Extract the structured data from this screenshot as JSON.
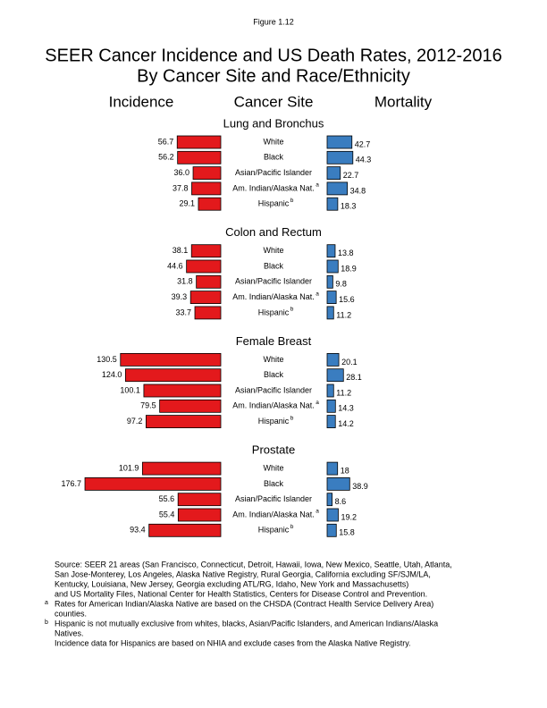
{
  "figure_label": "Figure 1.12",
  "title": [
    "SEER Cancer Incidence and US Death Rates, 2012-2016",
    "By Cancer Site and Race/Ethnicity"
  ],
  "headers": [
    "Incidence",
    "Cancer Site",
    "Mortality"
  ],
  "chart_data": [
    {
      "type": "bar",
      "title": "Lung and Bronchus",
      "categories": [
        "White",
        "Black",
        "Asian/Pacific Islander",
        "Am. Indian/Alaska Nat.",
        "Hispanic"
      ],
      "category_notes": [
        null,
        null,
        null,
        "a",
        "b"
      ],
      "series": [
        {
          "color": "#e3191c",
          "values": [
            56.7,
            56.2,
            36.0,
            37.8,
            29.1
          ],
          "value_labels": [
            "56.7",
            "56.2",
            "36.0",
            "37.8",
            "29.1"
          ]
        },
        {
          "color": "#3a7dc0",
          "values": [
            42.7,
            44.3,
            22.7,
            34.8,
            18.3
          ],
          "value_labels": [
            "42.7",
            "44.3",
            "22.7",
            "34.8",
            "18.3"
          ]
        }
      ]
    },
    {
      "type": "bar",
      "title": "Colon and Rectum",
      "categories": [
        "White",
        "Black",
        "Asian/Pacific Islander",
        "Am. Indian/Alaska Nat.",
        "Hispanic"
      ],
      "category_notes": [
        null,
        null,
        null,
        "a",
        "b"
      ],
      "series": [
        {
          "color": "#e3191c",
          "values": [
            38.1,
            44.6,
            31.8,
            39.3,
            33.7
          ],
          "value_labels": [
            "38.1",
            "44.6",
            "31.8",
            "39.3",
            "33.7"
          ]
        },
        {
          "color": "#3a7dc0",
          "values": [
            13.8,
            18.9,
            9.8,
            15.6,
            11.2
          ],
          "value_labels": [
            "13.8",
            "18.9",
            "9.8",
            "15.6",
            "11.2"
          ]
        }
      ]
    },
    {
      "type": "bar",
      "title": "Female Breast",
      "categories": [
        "White",
        "Black",
        "Asian/Pacific Islander",
        "Am. Indian/Alaska Nat.",
        "Hispanic"
      ],
      "category_notes": [
        null,
        null,
        null,
        "a",
        "b"
      ],
      "series": [
        {
          "color": "#e3191c",
          "values": [
            130.5,
            124.0,
            100.1,
            79.5,
            97.2
          ],
          "value_labels": [
            "130.5",
            "124.0",
            "100.1",
            "79.5",
            "97.2"
          ]
        },
        {
          "color": "#3a7dc0",
          "values": [
            20.1,
            28.1,
            11.2,
            14.3,
            14.2
          ],
          "value_labels": [
            "20.1",
            "28.1",
            "11.2",
            "14.3",
            "14.2"
          ]
        }
      ]
    },
    {
      "type": "bar",
      "title": "Prostate",
      "categories": [
        "White",
        "Black",
        "Asian/Pacific Islander",
        "Am. Indian/Alaska Nat.",
        "Hispanic"
      ],
      "category_notes": [
        null,
        null,
        null,
        "a",
        "b"
      ],
      "series": [
        {
          "color": "#e3191c",
          "values": [
            101.9,
            176.7,
            55.6,
            55.4,
            93.4
          ],
          "value_labels": [
            "101.9",
            "176.7",
            "55.6",
            "55.4",
            "93.4"
          ]
        },
        {
          "color": "#3a7dc0",
          "values": [
            18,
            38.9,
            8.6,
            19.2,
            15.8
          ],
          "value_labels": [
            "18",
            "38.9",
            "8.6",
            "19.2",
            "15.8"
          ]
        }
      ]
    }
  ],
  "source": [
    "Source: SEER 21 areas (San Francisco, Connecticut, Detroit, Hawaii, Iowa, New Mexico, Seattle, Utah, Atlanta,",
    "San Jose-Monterey, Los Angeles, Alaska Native Registry, Rural Georgia, California excluding SF/SJM/LA,",
    "Kentucky, Louisiana, New Jersey, Georgia excluding ATL/RG, Idaho, New York and Massachusetts)",
    "and US Mortality Files, National Center for Health Statistics, Centers for Disease Control and Prevention."
  ],
  "notes": [
    {
      "marker": "a",
      "lines": [
        "Rates for American Indian/Alaska Native are based on the CHSDA (Contract Health Service Delivery Area)",
        "counties."
      ]
    },
    {
      "marker": "b",
      "lines": [
        "Hispanic is not mutually exclusive from whites, blacks, Asian/Pacific Islanders, and American Indians/Alaska",
        "Natives."
      ]
    }
  ],
  "closing": "Incidence data for Hispanics are based on NHIA and exclude cases from the Alaska Native Registry."
}
